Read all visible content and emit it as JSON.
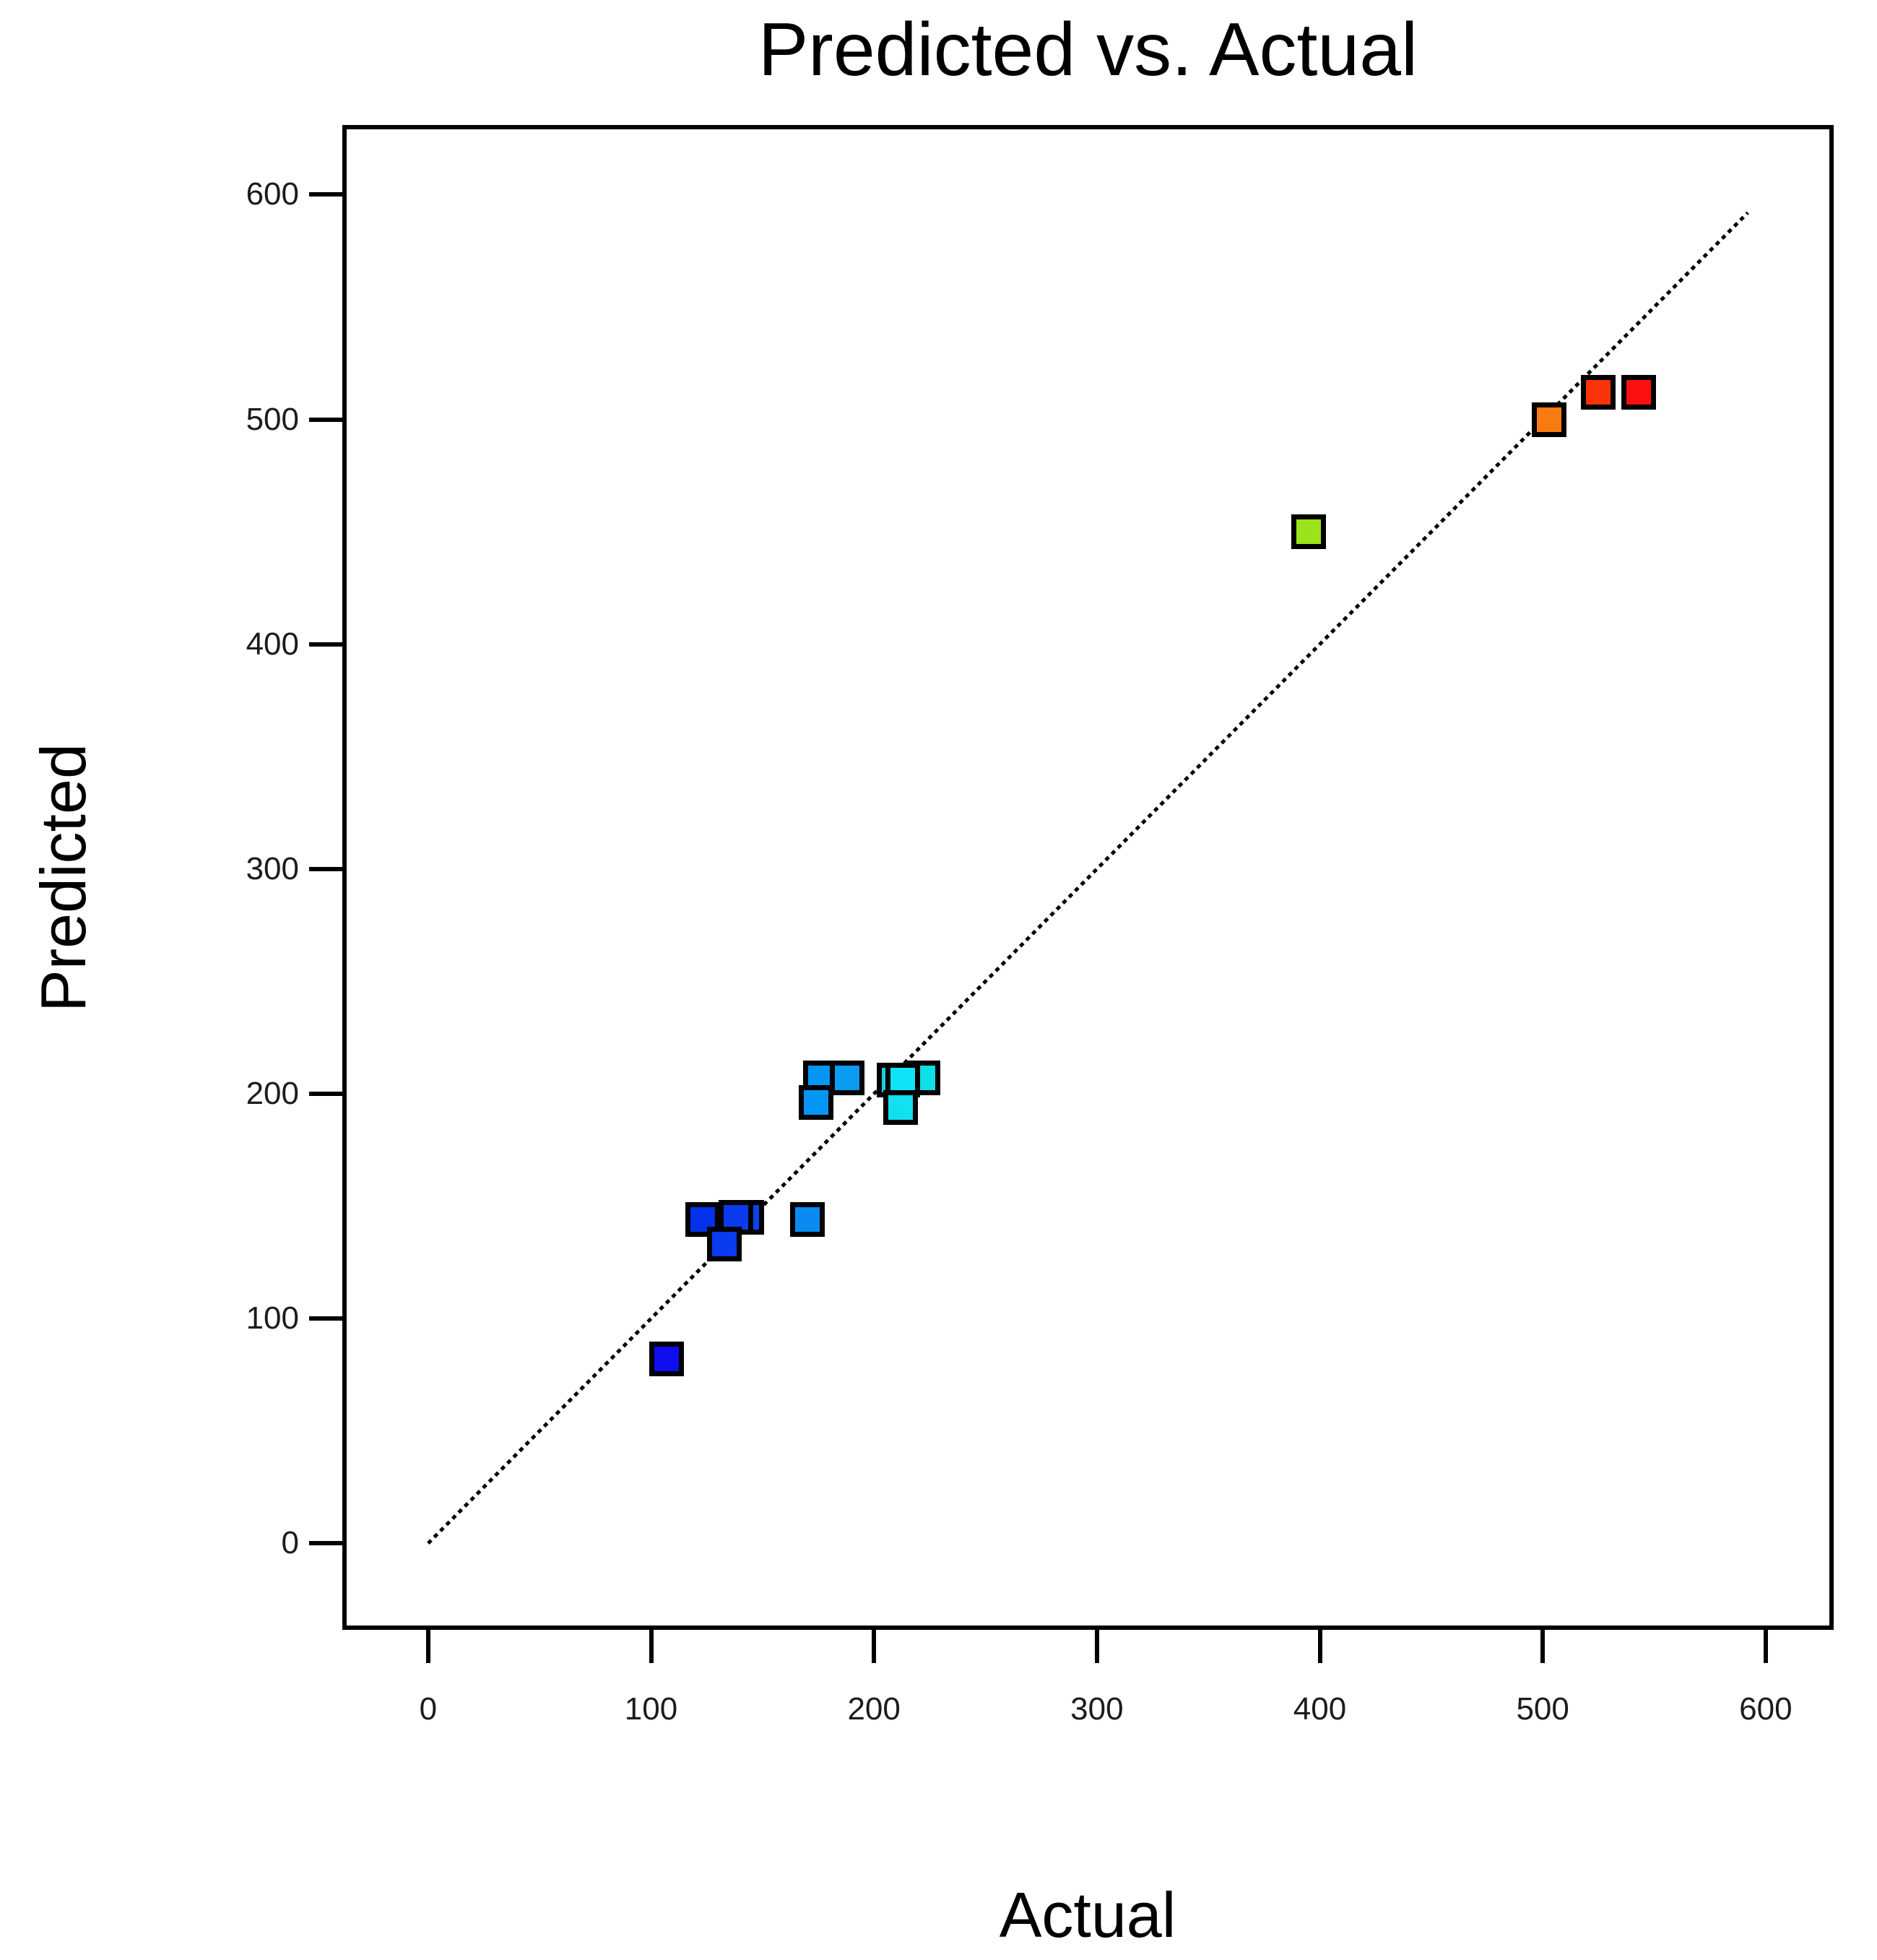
{
  "title": "Predicted vs. Actual",
  "x_axis": {
    "label": "Actual"
  },
  "y_axis": {
    "label": "Predicted"
  },
  "chart_data": {
    "type": "scatter",
    "title": "Predicted vs. Actual",
    "xlabel": "Actual",
    "ylabel": "Predicted",
    "xlim": [
      -38.5,
      630.5
    ],
    "ylim": [
      -38.5,
      631
    ],
    "x_ticks": [
      0,
      100,
      200,
      300,
      400,
      500,
      600
    ],
    "y_ticks": [
      0,
      100,
      200,
      300,
      400,
      500,
      600
    ],
    "grid": false,
    "legend": "none",
    "point_shape": "square",
    "point_border_color": "#000000",
    "identity_line": {
      "x1": 0,
      "y1": 0,
      "x2": 592,
      "y2": 592,
      "color": "#000000",
      "style": "dotted"
    },
    "points": [
      {
        "x": 143,
        "y": 145,
        "color": "#0944EC"
      },
      {
        "x": 123,
        "y": 144,
        "color": "#0431EA"
      },
      {
        "x": 138,
        "y": 145,
        "color": "#0A3BEF"
      },
      {
        "x": 133,
        "y": 133,
        "color": "#0A3BEF"
      },
      {
        "x": 107,
        "y": 82,
        "color": "#0D0DF0"
      },
      {
        "x": 170,
        "y": 144,
        "color": "#0B8BF1"
      },
      {
        "x": 176,
        "y": 207,
        "color": "#0596F5"
      },
      {
        "x": 188,
        "y": 207,
        "color": "#0B9BF0"
      },
      {
        "x": 174,
        "y": 196,
        "color": "#0596F5"
      },
      {
        "x": 222,
        "y": 207,
        "color": "#0EDEE6"
      },
      {
        "x": 209,
        "y": 206,
        "color": "#16CFE2"
      },
      {
        "x": 213,
        "y": 206,
        "color": "#0FE4F6"
      },
      {
        "x": 212,
        "y": 194,
        "color": "#10E0F0"
      },
      {
        "x": 395,
        "y": 450,
        "color": "#9BE31A"
      },
      {
        "x": 503,
        "y": 500,
        "color": "#F87A12"
      },
      {
        "x": 525,
        "y": 512,
        "color": "#FA330A"
      },
      {
        "x": 543,
        "y": 512,
        "color": "#FA1010"
      }
    ]
  }
}
